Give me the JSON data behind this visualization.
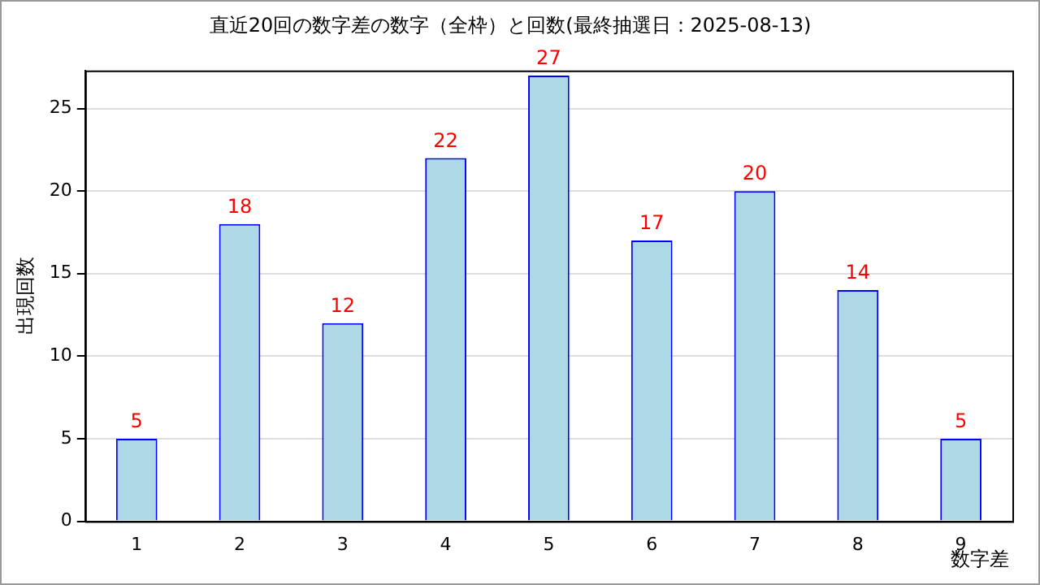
{
  "chart_data": {
    "type": "bar",
    "title": "直近20回の数字差の数字（全枠）と回数(最終抽選日：2025-08-13)",
    "xlabel": "数字差",
    "ylabel": "出現回数",
    "categories": [
      "1",
      "2",
      "3",
      "4",
      "5",
      "6",
      "7",
      "8",
      "9"
    ],
    "values": [
      5,
      18,
      12,
      22,
      27,
      17,
      20,
      14,
      5
    ],
    "color": "#add8e6",
    "ylim": [
      0,
      27.3
    ],
    "yticks": [
      0,
      5,
      10,
      15,
      20,
      25
    ],
    "grid": "y",
    "legend": false,
    "data_labels": true
  }
}
